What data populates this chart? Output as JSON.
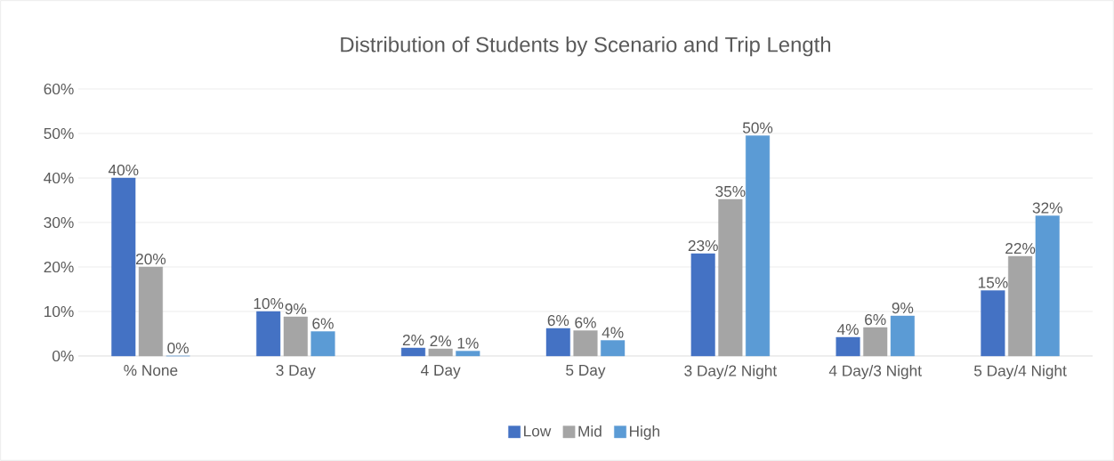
{
  "chart_data": {
    "type": "bar",
    "title": "Distribution of Students by Scenario and Trip Length",
    "categories": [
      "% None",
      "3 Day",
      "4 Day",
      "5 Day",
      "3 Day/2 Night",
      "4 Day/3 Night",
      "5 Day/4 Night"
    ],
    "series": [
      {
        "name": "Low",
        "color": "#4472c4",
        "values": [
          40,
          10,
          1.8,
          6.2,
          23,
          4.2,
          14.7
        ],
        "value_labels": [
          "40%",
          "10%",
          "2%",
          "6%",
          "23%",
          "4%",
          "15%"
        ]
      },
      {
        "name": "Mid",
        "color": "#a5a5a5",
        "values": [
          20,
          8.8,
          1.6,
          5.7,
          35.2,
          6.4,
          22.4
        ],
        "value_labels": [
          "20%",
          "9%",
          "2%",
          "6%",
          "35%",
          "6%",
          "22%"
        ]
      },
      {
        "name": "High",
        "color": "#5b9bd5",
        "values": [
          0,
          5.5,
          1.1,
          3.5,
          49.5,
          9,
          31.5
        ],
        "value_labels": [
          "0%",
          "6%",
          "1%",
          "4%",
          "50%",
          "9%",
          "32%"
        ]
      }
    ],
    "ylim": [
      0,
      60
    ],
    "yticks": [
      {
        "value": 0,
        "label": "0%"
      },
      {
        "value": 10,
        "label": "10%"
      },
      {
        "value": 20,
        "label": "20%"
      },
      {
        "value": 30,
        "label": "30%"
      },
      {
        "value": 40,
        "label": "40%"
      },
      {
        "value": 50,
        "label": "50%"
      },
      {
        "value": 60,
        "label": "60%"
      }
    ],
    "grid": "y",
    "legend": "bottom"
  }
}
